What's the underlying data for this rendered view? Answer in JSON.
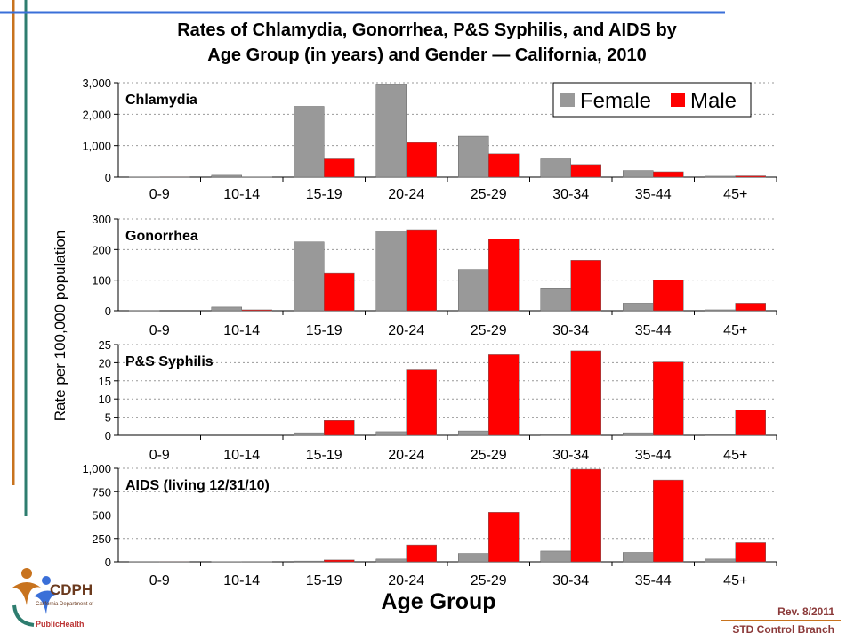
{
  "title_line1": "Rates of Chlamydia, Gonorrhea, P&S Syphilis, and AIDS by",
  "title_line2": "Age Group (in years) and Gender — California, 2010",
  "ylabel": "Rate per 100,000 population",
  "xlabel": "Age Group",
  "rev": "Rev.  8/2011",
  "branch": "STD Control Branch",
  "logo": {
    "text": "CDPH",
    "sub": "California Department of",
    "ph": "PublicHealth"
  },
  "colors": {
    "female": "#999999",
    "male": "#ff0000",
    "accent_orange": "#c8731e",
    "accent_teal": "#2e7d6f",
    "accent_blue": "#3a6fd8"
  },
  "chart_data": [
    {
      "type": "bar",
      "title": "Chlamydia",
      "categories": [
        "0-9",
        "10-14",
        "15-19",
        "20-24",
        "25-29",
        "30-34",
        "35-44",
        "45+"
      ],
      "series": [
        {
          "name": "Female",
          "values": [
            5,
            60,
            2250,
            2960,
            1300,
            580,
            210,
            30
          ]
        },
        {
          "name": "Male",
          "values": [
            2,
            8,
            580,
            1100,
            740,
            400,
            170,
            40
          ]
        }
      ],
      "ylim": [
        0,
        3000
      ],
      "yticks": [
        "0",
        "1,000",
        "2,000",
        "3,000"
      ],
      "ytick_values": [
        0,
        1000,
        2000,
        3000
      ],
      "grid": true,
      "legend": "top-right"
    },
    {
      "type": "bar",
      "title": "Gonorrhea",
      "categories": [
        "0-9",
        "10-14",
        "15-19",
        "20-24",
        "25-29",
        "30-34",
        "35-44",
        "45+"
      ],
      "series": [
        {
          "name": "Female",
          "values": [
            1,
            12,
            225,
            260,
            135,
            72,
            25,
            3
          ]
        },
        {
          "name": "Male",
          "values": [
            0,
            3,
            122,
            265,
            235,
            165,
            100,
            25
          ]
        }
      ],
      "ylim": [
        0,
        300
      ],
      "yticks": [
        "0",
        "100",
        "200",
        "300"
      ],
      "ytick_values": [
        0,
        100,
        200,
        300
      ],
      "grid": true
    },
    {
      "type": "bar",
      "title": "P&S Syphilis",
      "categories": [
        "0-9",
        "10-14",
        "15-19",
        "20-24",
        "25-29",
        "30-34",
        "35-44",
        "45+"
      ],
      "series": [
        {
          "name": "Female",
          "values": [
            0,
            0,
            0.7,
            1.0,
            1.2,
            0.2,
            0.7,
            0.2
          ]
        },
        {
          "name": "Male",
          "values": [
            0,
            0,
            4.1,
            18.0,
            22.2,
            23.3,
            20.2,
            7.0
          ]
        }
      ],
      "ylim": [
        0,
        25
      ],
      "yticks": [
        "0",
        "5",
        "10",
        "15",
        "20",
        "25"
      ],
      "ytick_values": [
        0,
        5,
        10,
        15,
        20,
        25
      ],
      "grid": true
    },
    {
      "type": "bar",
      "title": "AIDS (living 12/31/10)",
      "categories": [
        "0-9",
        "10-14",
        "15-19",
        "20-24",
        "25-29",
        "30-34",
        "35-44",
        "45+"
      ],
      "series": [
        {
          "name": "Female",
          "values": [
            1,
            2,
            8,
            30,
            90,
            115,
            100,
            30
          ]
        },
        {
          "name": "Male",
          "values": [
            1,
            3,
            20,
            180,
            530,
            990,
            875,
            205
          ]
        }
      ],
      "ylim": [
        0,
        1000
      ],
      "yticks": [
        "0",
        "250",
        "500",
        "750",
        "1,000"
      ],
      "ytick_values": [
        0,
        250,
        500,
        750,
        1000
      ],
      "grid": true
    }
  ]
}
